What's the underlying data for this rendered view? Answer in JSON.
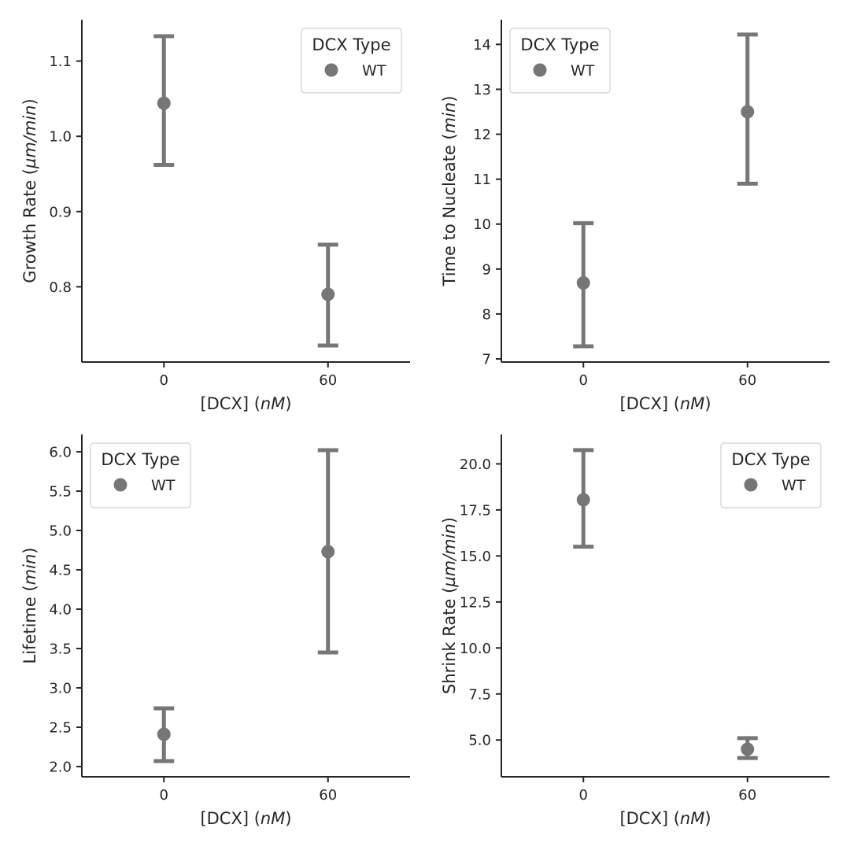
{
  "marker_color": "#767676",
  "chart_data": [
    {
      "type": "scatter",
      "ylabel_main": "Growth Rate",
      "ylabel_unit": "µm/min",
      "xlabel_main": "[DCX]",
      "xlabel_unit": "nM",
      "categories": [
        "0",
        "60"
      ],
      "yticks": [
        "0.8",
        "0.9",
        "1.0",
        "1.1"
      ],
      "ylim": [
        0.7,
        1.155
      ],
      "legend": {
        "title": "DCX Type",
        "entry": "WT",
        "position": "top-right"
      },
      "series": [
        {
          "name": "WT",
          "values": [
            1.044,
            0.79
          ],
          "err_low": [
            0.962,
            0.722
          ],
          "err_high": [
            1.133,
            0.856
          ]
        }
      ]
    },
    {
      "type": "scatter",
      "ylabel_main": "Time to Nucleate",
      "ylabel_unit": "min",
      "xlabel_main": "[DCX]",
      "xlabel_unit": "nM",
      "categories": [
        "0",
        "60"
      ],
      "yticks": [
        "7",
        "8",
        "9",
        "10",
        "11",
        "12",
        "13",
        "14"
      ],
      "ylim": [
        6.93,
        14.55
      ],
      "legend": {
        "title": "DCX Type",
        "entry": "WT",
        "position": "top-left"
      },
      "series": [
        {
          "name": "WT",
          "values": [
            8.69,
            12.5
          ],
          "err_low": [
            7.28,
            10.9
          ],
          "err_high": [
            10.02,
            14.22
          ]
        }
      ]
    },
    {
      "type": "scatter",
      "ylabel_main": "Lifetime",
      "ylabel_unit": "min",
      "xlabel_main": "[DCX]",
      "xlabel_unit": "nM",
      "categories": [
        "0",
        "60"
      ],
      "yticks": [
        "2.0",
        "2.5",
        "3.0",
        "3.5",
        "4.0",
        "4.5",
        "5.0",
        "5.5",
        "6.0"
      ],
      "ylim": [
        1.87,
        6.22
      ],
      "legend": {
        "title": "DCX Type",
        "entry": "WT",
        "position": "top-left"
      },
      "series": [
        {
          "name": "WT",
          "values": [
            2.41,
            4.73
          ],
          "err_low": [
            2.07,
            3.45
          ],
          "err_high": [
            2.74,
            6.02
          ]
        }
      ]
    },
    {
      "type": "scatter",
      "ylabel_main": "Shrink Rate",
      "ylabel_unit": "µm/min",
      "xlabel_main": "[DCX]",
      "xlabel_unit": "nM",
      "categories": [
        "0",
        "60"
      ],
      "yticks": [
        "5.0",
        "7.5",
        "10.0",
        "12.5",
        "15.0",
        "17.5",
        "20.0"
      ],
      "ylim": [
        3.0,
        21.6
      ],
      "legend": {
        "title": "DCX Type",
        "entry": "WT",
        "position": "top-right"
      },
      "series": [
        {
          "name": "WT",
          "values": [
            18.05,
            4.5
          ],
          "err_low": [
            15.5,
            4.02
          ],
          "err_high": [
            20.75,
            5.1
          ]
        }
      ]
    }
  ]
}
